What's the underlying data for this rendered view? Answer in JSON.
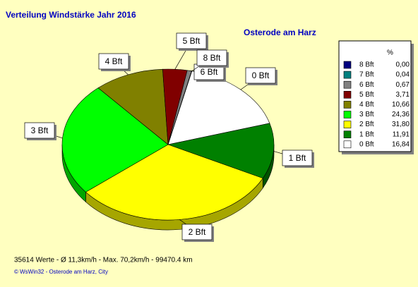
{
  "chart_data": {
    "type": "pie",
    "title": "Verteilung Windstärke  Jahr 2016",
    "subtitle": "Osterode am Harz",
    "categories": [
      "0 Bft",
      "1 Bft",
      "2 Bft",
      "3 Bft",
      "4 Bft",
      "5 Bft",
      "6 Bft",
      "7 Bft",
      "8 Bft"
    ],
    "values": [
      16.84,
      11.91,
      31.8,
      24.36,
      10.66,
      3.71,
      0.67,
      0.04,
      0.0
    ],
    "value_labels": [
      "16,84",
      "11,91",
      "31,80",
      "24,36",
      "10,66",
      "3,71",
      "0,67",
      "0,04",
      "0,00"
    ],
    "colors": [
      "#ffffff",
      "#008000",
      "#ffff00",
      "#00ff00",
      "#808000",
      "#800000",
      "#808080",
      "#008080",
      "#000080"
    ],
    "legend_header": "%",
    "footer": "35614 Werte   -   Ø 11,3km/h  -  Max. 70,2km/h   -   99470.4 km",
    "credit": "© WsWin32  -  Osterode am Harz, City"
  }
}
